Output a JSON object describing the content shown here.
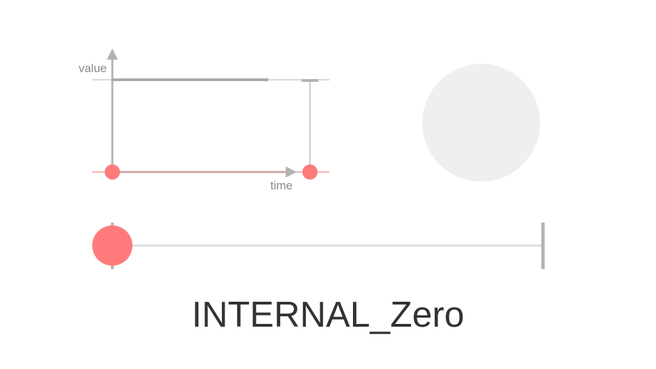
{
  "graph": {
    "y_axis_label": "value",
    "x_axis_label": "time"
  },
  "easing_name": "INTERNAL_Zero",
  "progress": 0,
  "colors": {
    "axis": "#b3b3b3",
    "thin_line": "#cccccc",
    "track_line": "#dddddd",
    "marker": "#ff7b7b",
    "time_track": "#f2b2b2",
    "preview_circle": "#efefef",
    "label": "#8a8a8a",
    "title": "#333333"
  }
}
